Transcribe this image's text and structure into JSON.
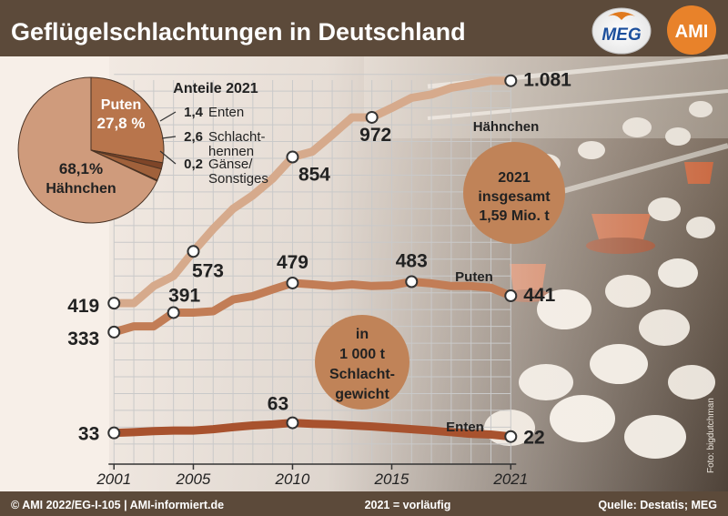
{
  "chart_data": {
    "type": "line",
    "title": "Geflügelschlachtungen in Deutschland",
    "unit_note": [
      "in",
      "1 000 t",
      "Schlacht-",
      "gewicht"
    ],
    "x_ticks": [
      "2001",
      "2005",
      "2010",
      "2015",
      "2021"
    ],
    "xlim": [
      2000,
      2022
    ],
    "ylim": [
      0,
      1150
    ],
    "grid": true,
    "series": [
      {
        "name": "Hähnchen",
        "color": "#d6aa8c",
        "values": [
          [
            2001,
            419
          ],
          [
            2002,
            419
          ],
          [
            2003,
            470
          ],
          [
            2004,
            500
          ],
          [
            2005,
            573
          ],
          [
            2006,
            640
          ],
          [
            2007,
            700
          ],
          [
            2008,
            740
          ],
          [
            2009,
            790
          ],
          [
            2010,
            854
          ],
          [
            2011,
            870
          ],
          [
            2012,
            920
          ],
          [
            2013,
            972
          ],
          [
            2014,
            972
          ],
          [
            2015,
            1000
          ],
          [
            2016,
            1030
          ],
          [
            2017,
            1040
          ],
          [
            2018,
            1060
          ],
          [
            2019,
            1070
          ],
          [
            2020,
            1081
          ],
          [
            2021,
            1081
          ]
        ],
        "labels": [
          {
            "x": 2001,
            "y": 419,
            "text": "419"
          },
          {
            "x": 2005,
            "y": 573,
            "text": "573"
          },
          {
            "x": 2010,
            "y": 854,
            "text": "854"
          },
          {
            "x": 2014,
            "y": 972,
            "text": "972"
          },
          {
            "x": 2021,
            "y": 1081,
            "text": "1.081"
          }
        ]
      },
      {
        "name": "Puten",
        "color": "#c27d56",
        "values": [
          [
            2001,
            333
          ],
          [
            2002,
            350
          ],
          [
            2003,
            350
          ],
          [
            2004,
            391
          ],
          [
            2005,
            391
          ],
          [
            2006,
            395
          ],
          [
            2007,
            430
          ],
          [
            2008,
            440
          ],
          [
            2009,
            460
          ],
          [
            2010,
            479
          ],
          [
            2011,
            475
          ],
          [
            2012,
            470
          ],
          [
            2013,
            475
          ],
          [
            2014,
            470
          ],
          [
            2015,
            472
          ],
          [
            2016,
            483
          ],
          [
            2017,
            478
          ],
          [
            2018,
            470
          ],
          [
            2019,
            470
          ],
          [
            2020,
            465
          ],
          [
            2021,
            441
          ]
        ],
        "labels": [
          {
            "x": 2001,
            "y": 333,
            "text": "333"
          },
          {
            "x": 2004,
            "y": 391,
            "text": "391"
          },
          {
            "x": 2010,
            "y": 479,
            "text": "479"
          },
          {
            "x": 2016,
            "y": 483,
            "text": "483"
          },
          {
            "x": 2021,
            "y": 441,
            "text": "441"
          }
        ]
      },
      {
        "name": "Enten",
        "color": "#a8522e",
        "values": [
          [
            2001,
            33
          ],
          [
            2002,
            35
          ],
          [
            2003,
            38
          ],
          [
            2004,
            40
          ],
          [
            2005,
            40
          ],
          [
            2006,
            44
          ],
          [
            2007,
            50
          ],
          [
            2008,
            55
          ],
          [
            2009,
            58
          ],
          [
            2010,
            63
          ],
          [
            2011,
            60
          ],
          [
            2012,
            58
          ],
          [
            2013,
            55
          ],
          [
            2014,
            52
          ],
          [
            2015,
            48
          ],
          [
            2016,
            44
          ],
          [
            2017,
            40
          ],
          [
            2018,
            35
          ],
          [
            2019,
            30
          ],
          [
            2020,
            28
          ],
          [
            2021,
            22
          ]
        ],
        "labels": [
          {
            "x": 2001,
            "y": 33,
            "text": "33"
          },
          {
            "x": 2010,
            "y": 63,
            "text": "63"
          },
          {
            "x": 2021,
            "y": 22,
            "text": "22"
          }
        ]
      }
    ],
    "total_box": [
      "2021",
      "insgesamt",
      "1,59 Mio. t"
    ],
    "pie": {
      "title": "Anteile 2021",
      "slices": [
        {
          "label": "Hähnchen",
          "value": 68.1,
          "text": "68,1%",
          "color": "#cf9b7c"
        },
        {
          "label": "Puten",
          "value": 27.8,
          "text": "27,8 %",
          "color": "#b8754c"
        },
        {
          "label": "Enten",
          "value": 1.4,
          "text": "1,4",
          "color": "#7e4528"
        },
        {
          "label": "Schlachthennen",
          "value": 2.6,
          "text": "2,6",
          "color": "#a0613b"
        },
        {
          "label": "Gänse/Sonstiges",
          "value": 0.2,
          "text": "0,2",
          "color": "#6a3a22"
        }
      ],
      "inner_labels": {
        "puten": [
          "Puten",
          "27,8 %"
        ],
        "haehnchen": [
          "68,1%",
          "Hähnchen"
        ]
      },
      "legend": [
        {
          "value": "1,4",
          "lines": [
            "Enten"
          ]
        },
        {
          "value": "2,6",
          "lines": [
            "Schlacht-",
            "hennen"
          ]
        },
        {
          "value": "0,2",
          "lines": [
            "Gänse/",
            "Sonstiges"
          ]
        }
      ]
    }
  },
  "footer": {
    "left": "© AMI 2022/EG-I-105 | AMI-informiert.de",
    "center": "2021 = vorläufig",
    "right": "Quelle: Destatis; MEG"
  },
  "photo_credit": "Foto: bigdutchman",
  "logos": {
    "meg": "MEG",
    "ami": "AMI"
  },
  "colors": {
    "header_bg": "#5c4a3a",
    "plot_bg": "#f7efe8",
    "grid": "#c9c9c9",
    "bubble": "#c08358"
  }
}
